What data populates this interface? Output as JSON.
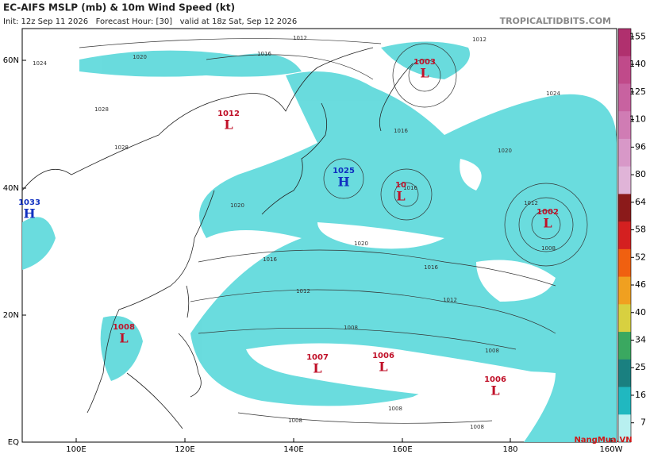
{
  "header": {
    "title": "EC-AIFS MSLP (mb) & 10m Wind Speed (kt)",
    "subtitle": "Init: 12z Sep 11 2026   Forecast Hour: [30]   valid at 18z Sat, Sep 12 2026",
    "source": "TROPICALTIDBITS.COM"
  },
  "map": {
    "lat_labels": [
      "60N",
      "40N",
      "20N",
      "EQ"
    ],
    "lon_labels": [
      "100E",
      "120E",
      "140E",
      "160E",
      "180",
      "160W"
    ],
    "pressure_centers": [
      {
        "letter": "H",
        "value": "1033"
      },
      {
        "letter": "H",
        "value": "1025"
      },
      {
        "letter": "L",
        "value": "1012"
      },
      {
        "letter": "L",
        "value": "1003"
      },
      {
        "letter": "L",
        "value": "10"
      },
      {
        "letter": "L",
        "value": "1002"
      },
      {
        "letter": "L",
        "value": "1008"
      },
      {
        "letter": "L",
        "value": "1007"
      },
      {
        "letter": "L",
        "value": "1006"
      },
      {
        "letter": "L",
        "value": "1006"
      }
    ],
    "isobar_labels": [
      "1012",
      "1016",
      "1020",
      "1024",
      "1012",
      "1024",
      "1020",
      "1016",
      "1020",
      "1016",
      "1016",
      "1012",
      "1012",
      "1008",
      "1008",
      "1008",
      "1008",
      "1008",
      "1008",
      "1012",
      "1020",
      "1028",
      "1028",
      "1016"
    ]
  },
  "colorbar": {
    "ticks": [
      155,
      140,
      125,
      110,
      96,
      80,
      64,
      58,
      52,
      46,
      40,
      34,
      25,
      16,
      7
    ],
    "colors": [
      "#b0306e",
      "#c04a8a",
      "#c862a0",
      "#d07cb4",
      "#d898c8",
      "#e0b4d8",
      "#8b1a1a",
      "#d42020",
      "#f06010",
      "#f0a020",
      "#d8d040",
      "#3aa860",
      "#1a8080",
      "#20b8c0",
      "#b8f0f0"
    ]
  },
  "watermark": "NangMua.VN"
}
